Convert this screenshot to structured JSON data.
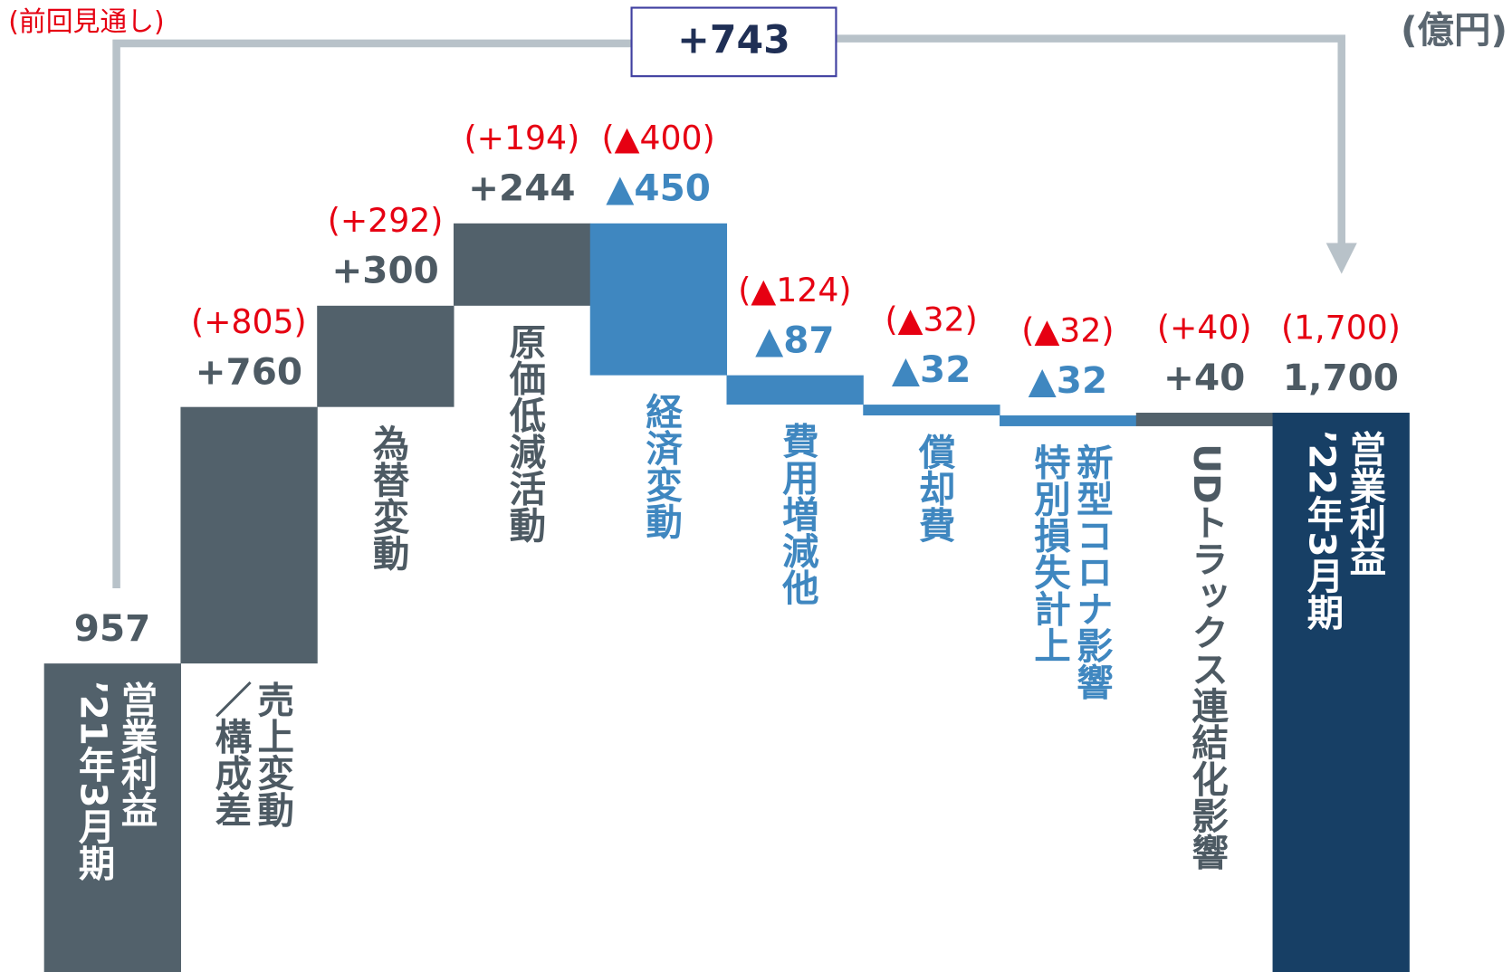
{
  "chart_data": {
    "type": "waterfall",
    "legend_label": "(前回見通し)",
    "unit_label": "(億円)",
    "annotation": {
      "value": 743,
      "label": "+743"
    },
    "categories": [
      [
        "営業利益",
        "’21年3月期"
      ],
      [
        "売上変動",
        "／構成差"
      ],
      [
        "為替変動"
      ],
      [
        "原価低減活動"
      ],
      [
        "経済変動"
      ],
      [
        "費用増減他"
      ],
      [
        "償却費"
      ],
      [
        "新型コロナ影響",
        "特別損失計上"
      ],
      [
        "UDトラックス連結化影響"
      ],
      [
        "営業利益",
        "’22年3月期"
      ]
    ],
    "values": [
      957,
      760,
      300,
      244,
      -450,
      -87,
      -32,
      -32,
      40,
      1700
    ],
    "value_labels": [
      "957",
      "+760",
      "+300",
      "+244",
      "▲450",
      "▲87",
      "▲32",
      "▲32",
      "+40",
      "1,700"
    ],
    "prev_values": [
      null,
      805,
      292,
      194,
      -400,
      -124,
      -32,
      -32,
      40,
      1700
    ],
    "prev_labels": [
      null,
      "(+805)",
      "(+292)",
      "(+194)",
      "(▲400)",
      "(▲124)",
      "(▲32)",
      "(▲32)",
      "(+40)",
      "(1,700)"
    ],
    "colors": [
      "#52616b",
      "#52616b",
      "#52616b",
      "#52616b",
      "#3f87c0",
      "#3f87c0",
      "#3f87c0",
      "#3f87c0",
      "#52616b",
      "#173f65"
    ],
    "label_color": "#4d5a63",
    "prev_color": "#e60012"
  }
}
